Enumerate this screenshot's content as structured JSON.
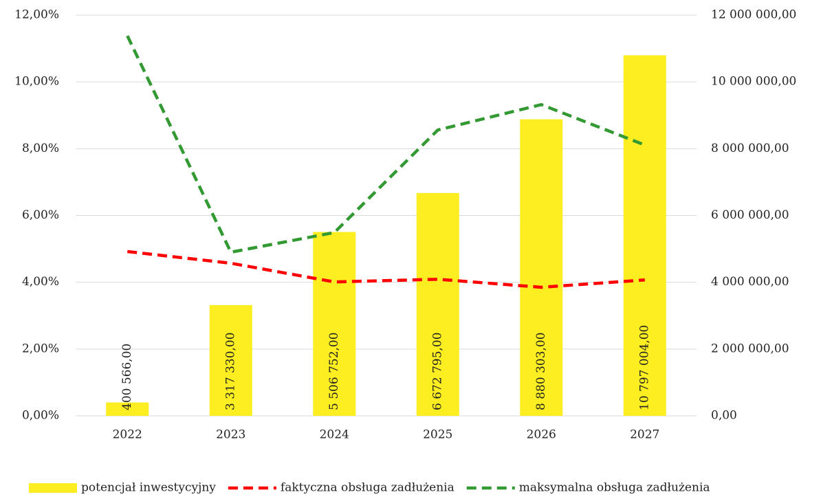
{
  "chart_data": {
    "type": "bar",
    "categories": [
      "2022",
      "2023",
      "2024",
      "2025",
      "2026",
      "2027"
    ],
    "ylim": [
      0,
      12
    ],
    "yticks": [
      {
        "value": 0,
        "label": "0,00%"
      },
      {
        "value": 2,
        "label": "2,00%"
      },
      {
        "value": 4,
        "label": "4,00%"
      },
      {
        "value": 6,
        "label": "6,00%"
      },
      {
        "value": 8,
        "label": "8,00%"
      },
      {
        "value": 10,
        "label": "10,00%"
      },
      {
        "value": 12,
        "label": "12,00%"
      }
    ],
    "y2lim": [
      0,
      12000000
    ],
    "y2ticks": [
      {
        "value": 0,
        "label": "0,00"
      },
      {
        "value": 2000000,
        "label": "2 000 000,00"
      },
      {
        "value": 4000000,
        "label": "4 000 000,00"
      },
      {
        "value": 6000000,
        "label": "6 000 000,00"
      },
      {
        "value": 8000000,
        "label": "8 000 000,00"
      },
      {
        "value": 10000000,
        "label": "10 000 000,00"
      },
      {
        "value": 12000000,
        "label": "12 000 000,00"
      }
    ],
    "grid": true,
    "legend": "bottom",
    "series": [
      {
        "name": "potencjał inwestycyjny",
        "type": "bar",
        "axis": "y2",
        "color": "#fcee21",
        "values": [
          400566,
          3317330,
          5506752,
          6672795,
          8880303,
          10797004
        ],
        "value_labels": [
          "400 566,00",
          "3 317 330,00",
          "5 506 752,00",
          "6 672 795,00",
          "8 880 303,00",
          "10 797 004,00"
        ]
      },
      {
        "name": "faktyczna obsługa zadłużenia",
        "type": "line",
        "axis": "y",
        "color": "#ff0000",
        "values": [
          4.92,
          4.57,
          4.01,
          4.09,
          3.85,
          4.07
        ]
      },
      {
        "name": "maksymalna obsługa zadłużenia",
        "type": "line",
        "axis": "y",
        "color": "#339933",
        "values": [
          11.38,
          4.9,
          5.49,
          8.56,
          9.32,
          8.11
        ]
      }
    ]
  }
}
